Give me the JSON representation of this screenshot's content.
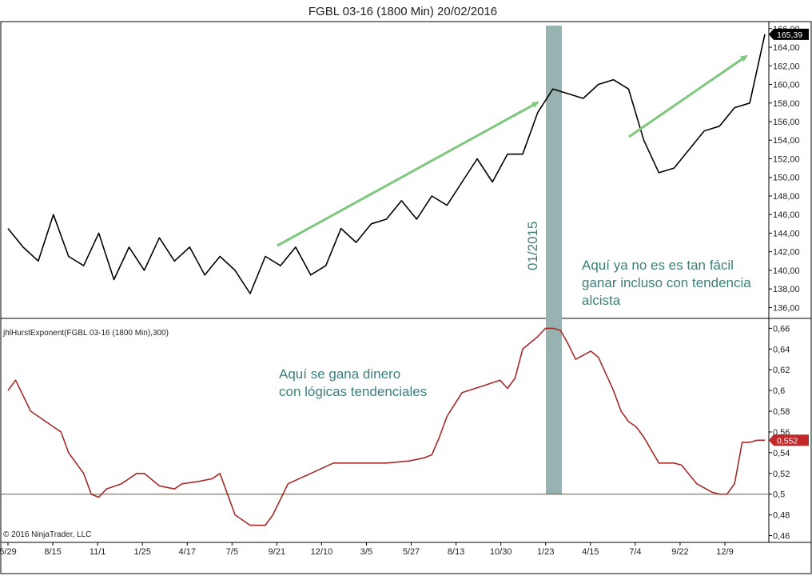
{
  "chart_data": [
    {
      "type": "line",
      "panel": "price",
      "title": "FGBL 03-16 (1800 Min)  20/02/2016",
      "color": "#000000",
      "ylim": [
        135,
        166.5
      ],
      "yticks": [
        "136,00",
        "138,00",
        "140,00",
        "142,00",
        "144,00",
        "146,00",
        "148,00",
        "150,00",
        "152,00",
        "154,00",
        "156,00",
        "158,00",
        "160,00",
        "162,00",
        "164,00",
        "166,00"
      ],
      "last_value_label": "165,39",
      "last_value": 165.39,
      "points_x": [
        0,
        2,
        4,
        6,
        8,
        10,
        12,
        14,
        16,
        18,
        20,
        22,
        24,
        26,
        28,
        30,
        32,
        34,
        36,
        38,
        40,
        42,
        44,
        46,
        48,
        50,
        52,
        54,
        56,
        58,
        60,
        62,
        64,
        66,
        68,
        70,
        72,
        74,
        76,
        78,
        80,
        82,
        84,
        86,
        88,
        90,
        92,
        94,
        96,
        98,
        100
      ],
      "points_y": [
        144.5,
        142.5,
        141.0,
        146.0,
        141.5,
        140.5,
        144.0,
        139.0,
        142.5,
        140.0,
        143.5,
        141.0,
        142.5,
        139.5,
        141.5,
        140.0,
        137.5,
        141.5,
        140.5,
        142.5,
        139.5,
        140.5,
        144.5,
        143.0,
        145.0,
        145.5,
        147.5,
        145.5,
        148.0,
        147.0,
        149.5,
        152.0,
        149.5,
        152.5,
        152.5,
        157.0,
        159.5,
        159.0,
        158.5,
        160.0,
        160.5,
        159.5,
        154.0,
        150.5,
        151.0,
        153.0,
        155.0,
        155.5,
        157.5,
        158.0,
        165.4
      ],
      "annotations": [
        "Aquí ya no es es tan fácil",
        "ganar incluso con tendencia",
        "alcista"
      ]
    },
    {
      "type": "line",
      "panel": "indicator",
      "label": "jhlHurstExponent(FGBL 03-16 (1800 Min),300)",
      "color": "#a52a2a",
      "ylim": [
        0.455,
        0.668
      ],
      "yticks": [
        "0,46",
        "0,48",
        "0,5",
        "0,52",
        "0,54",
        "0,56",
        "0,58",
        "0,6",
        "0,62",
        "0,64",
        "0,66"
      ],
      "reference_line": 0.5,
      "last_value_label": "0,552",
      "last_value": 0.552,
      "points_x": [
        0,
        1,
        3,
        4,
        6,
        7,
        8,
        10,
        11,
        12,
        13,
        15,
        16,
        17,
        18,
        20,
        22,
        23,
        25,
        27,
        28,
        30,
        32,
        34,
        35,
        37,
        40,
        43,
        46,
        50,
        53,
        55,
        56,
        57,
        58,
        60,
        63,
        65,
        66,
        67,
        68,
        70,
        71,
        72,
        73,
        74,
        75,
        77,
        78,
        80,
        81,
        82,
        83,
        84,
        86,
        88,
        89,
        91,
        93,
        94,
        95,
        96,
        97,
        98,
        99,
        100
      ],
      "points_y": [
        0.6,
        0.61,
        0.58,
        0.575,
        0.565,
        0.56,
        0.54,
        0.52,
        0.5,
        0.497,
        0.505,
        0.51,
        0.515,
        0.52,
        0.52,
        0.508,
        0.505,
        0.51,
        0.512,
        0.515,
        0.52,
        0.48,
        0.47,
        0.47,
        0.48,
        0.51,
        0.52,
        0.53,
        0.53,
        0.53,
        0.532,
        0.535,
        0.538,
        0.555,
        0.575,
        0.598,
        0.605,
        0.61,
        0.602,
        0.612,
        0.64,
        0.652,
        0.66,
        0.66,
        0.658,
        0.645,
        0.63,
        0.638,
        0.632,
        0.6,
        0.58,
        0.57,
        0.565,
        0.555,
        0.53,
        0.53,
        0.528,
        0.51,
        0.502,
        0.5,
        0.5,
        0.51,
        0.55,
        0.55,
        0.552,
        0.552
      ],
      "annotations": [
        "Aquí se gana dinero",
        "con lógicas tendenciales"
      ]
    }
  ],
  "x_axis": {
    "ticks": [
      "5/29",
      "8/15",
      "11/1",
      "1/25",
      "4/17",
      "7/5",
      "9/21",
      "12/10",
      "3/5",
      "5/27",
      "8/13",
      "10/30",
      "1/23",
      "4/15",
      "7/4",
      "9/22",
      "12/9"
    ]
  },
  "highlight": {
    "label": "01/2015",
    "color": "#98b2b1",
    "label_color": "#b06060"
  },
  "arrow_color": "#7dc87d",
  "copyright": "© 2016 NinjaTrader, LLC"
}
